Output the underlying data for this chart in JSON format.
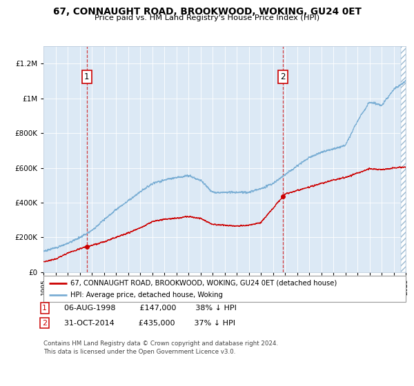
{
  "title": "67, CONNAUGHT ROAD, BROOKWOOD, WOKING, GU24 0ET",
  "subtitle": "Price paid vs. HM Land Registry's House Price Index (HPI)",
  "background_color": "#dce9f5",
  "plot_bg_color": "#dce9f5",
  "ylim": [
    0,
    1300000
  ],
  "yticks": [
    0,
    200000,
    400000,
    600000,
    800000,
    1000000,
    1200000
  ],
  "ytick_labels": [
    "£0",
    "£200K",
    "£400K",
    "£600K",
    "£800K",
    "£1M",
    "£1.2M"
  ],
  "sale1_date_x": 1998.58,
  "sale1_price": 147000,
  "sale2_date_x": 2014.83,
  "sale2_price": 435000,
  "sale1_label": "1",
  "sale2_label": "2",
  "legend_house": "67, CONNAUGHT ROAD, BROOKWOOD, WOKING, GU24 0ET (detached house)",
  "legend_hpi": "HPI: Average price, detached house, Woking",
  "footer": "Contains HM Land Registry data © Crown copyright and database right 2024.\nThis data is licensed under the Open Government Licence v3.0.",
  "house_color": "#cc0000",
  "hpi_color": "#7aaed4",
  "xmin": 1995,
  "xmax": 2025,
  "hpi_knots_x": [
    1995,
    1996,
    1997,
    1998,
    1999,
    2000,
    2001,
    2002,
    2003,
    2004,
    2005,
    2006,
    2007,
    2008,
    2009,
    2010,
    2011,
    2012,
    2013,
    2014,
    2015,
    2016,
    2017,
    2018,
    2019,
    2020,
    2021,
    2022,
    2023,
    2024,
    2025
  ],
  "hpi_knots_y": [
    120000,
    140000,
    165000,
    200000,
    240000,
    300000,
    360000,
    410000,
    460000,
    510000,
    530000,
    545000,
    555000,
    530000,
    460000,
    460000,
    460000,
    460000,
    480000,
    510000,
    560000,
    610000,
    660000,
    690000,
    710000,
    730000,
    870000,
    980000,
    960000,
    1050000,
    1100000
  ],
  "house_knots_x": [
    1995,
    1996,
    1997,
    1998.58,
    1999,
    2000,
    2001,
    2002,
    2003,
    2004,
    2005,
    2006,
    2007,
    2008,
    2009,
    2010,
    2011,
    2012,
    2013,
    2014.83,
    2015,
    2016,
    2017,
    2018,
    2019,
    2020,
    2021,
    2022,
    2023,
    2024,
    2025
  ],
  "house_knots_y": [
    60000,
    75000,
    110000,
    147000,
    155000,
    175000,
    200000,
    225000,
    255000,
    290000,
    305000,
    310000,
    320000,
    310000,
    275000,
    270000,
    265000,
    270000,
    285000,
    435000,
    450000,
    470000,
    490000,
    510000,
    530000,
    545000,
    570000,
    595000,
    590000,
    600000,
    605000
  ]
}
